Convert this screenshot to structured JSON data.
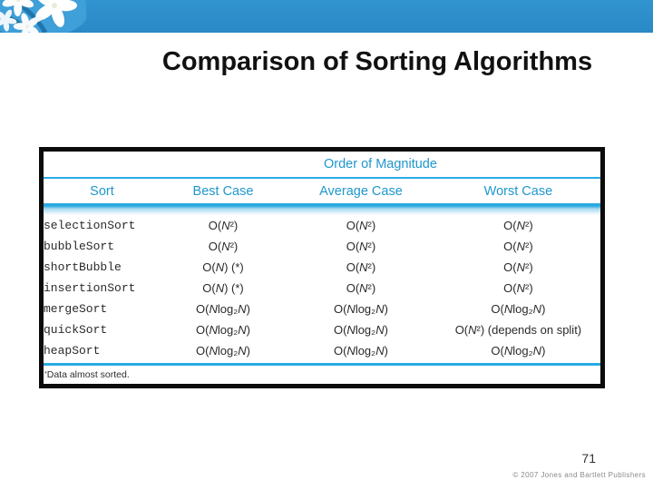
{
  "slide": {
    "title": "Comparison of Sorting Algorithms",
    "page_number": "71",
    "copyright": "© 2007 Jones and Bartlett Publishers"
  },
  "table": {
    "caption": "Order of Magnitude",
    "columns": [
      "Sort",
      "Best Case",
      "Average Case",
      "Worst Case"
    ],
    "rows": [
      {
        "name": "selectionSort",
        "best": "O(N²)",
        "average": "O(N²)",
        "worst": "O(N²)"
      },
      {
        "name": "bubbleSort",
        "best": "O(N²)",
        "average": "O(N²)",
        "worst": "O(N²)"
      },
      {
        "name": "shortBubble",
        "best": "O(N) (*)",
        "average": "O(N²)",
        "worst": "O(N²)"
      },
      {
        "name": "insertionSort",
        "best": "O(N) (*)",
        "average": "O(N²)",
        "worst": "O(N²)"
      },
      {
        "name": "mergeSort",
        "best": "O(Nlog₂N)",
        "average": "O(Nlog₂N)",
        "worst": "O(Nlog₂N)"
      },
      {
        "name": "quickSort",
        "best": "O(Nlog₂N)",
        "average": "O(Nlog₂N)",
        "worst": "O(N²) (depends on split)"
      },
      {
        "name": "heapSort",
        "best": "O(Nlog₂N)",
        "average": "O(Nlog₂N)",
        "worst": "O(Nlog₂N)"
      }
    ],
    "footnote_marker": "*",
    "footnote_text": "Data almost sorted."
  },
  "colors": {
    "banner_blue": "#2c8cc9",
    "table_accent": "#1f97cc",
    "rule_cyan": "#29abe2"
  }
}
